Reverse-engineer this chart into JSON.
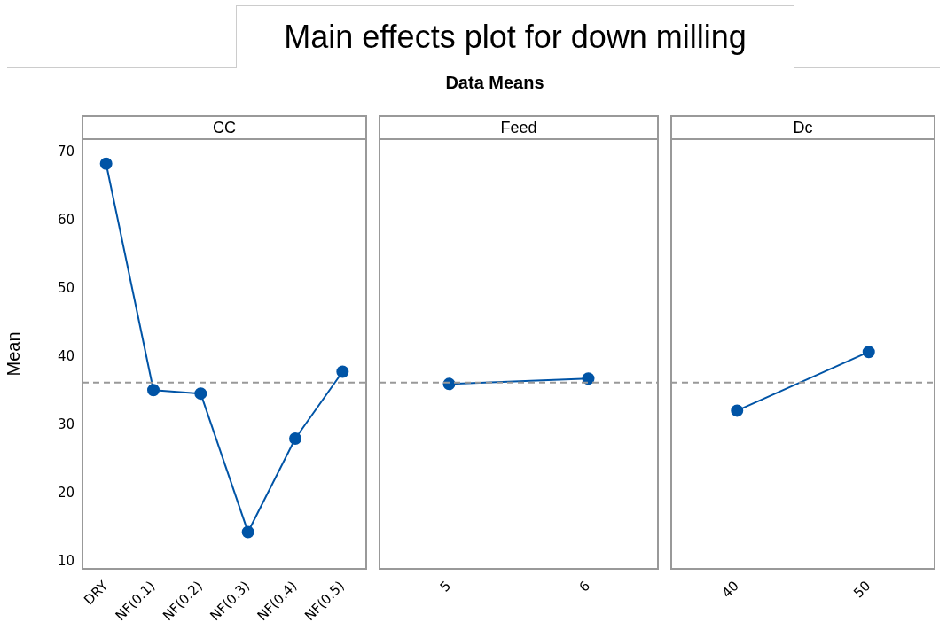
{
  "chart_data": [
    {
      "type": "other",
      "title": "Main effects plot for down milling",
      "subtitle": "Data Means"
    },
    {
      "type": "line",
      "title": "CC",
      "ylabel": "Mean",
      "categories": [
        "DRY",
        "NF(0.1)",
        "NF(0.2)",
        "NF(0.3)",
        "NF(0.4)",
        "NF(0.5)"
      ],
      "series": [
        {
          "color": "#0054a6",
          "values": [
            68.4,
            35.2,
            34.7,
            14.4,
            28.1,
            37.9
          ]
        }
      ],
      "ylim": [
        9,
        72
      ],
      "yticks": [
        10,
        20,
        30,
        40,
        50,
        60,
        70
      ],
      "grid": false,
      "legend": false,
      "marker": "circle",
      "line_style": "solid",
      "ref_lines": [
        {
          "axis": "y",
          "value": 36.3,
          "color": "#999999",
          "line_style": "dashed"
        }
      ]
    },
    {
      "type": "line",
      "title": "Feed",
      "categories": [
        "5",
        "6"
      ],
      "series": [
        {
          "color": "#0054a6",
          "values": [
            36.1,
            36.9
          ]
        }
      ],
      "ylim": [
        9,
        72
      ],
      "yticks": [
        10,
        20,
        30,
        40,
        50,
        60,
        70
      ],
      "tick_labels": "x",
      "grid": false,
      "legend": false,
      "marker": "circle",
      "line_style": "solid",
      "ref_lines": [
        {
          "axis": "y",
          "value": 36.3,
          "color": "#999999",
          "line_style": "dashed"
        }
      ]
    },
    {
      "type": "line",
      "title": "Dc",
      "categories": [
        "40",
        "50"
      ],
      "series": [
        {
          "color": "#0054a6",
          "values": [
            32.2,
            40.8
          ]
        }
      ],
      "ylim": [
        9,
        72
      ],
      "yticks": [
        10,
        20,
        30,
        40,
        50,
        60,
        70
      ],
      "tick_labels": "x",
      "grid": false,
      "legend": false,
      "marker": "circle",
      "line_style": "solid",
      "ref_lines": [
        {
          "axis": "y",
          "value": 36.3,
          "color": "#999999",
          "line_style": "dashed"
        }
      ]
    }
  ]
}
